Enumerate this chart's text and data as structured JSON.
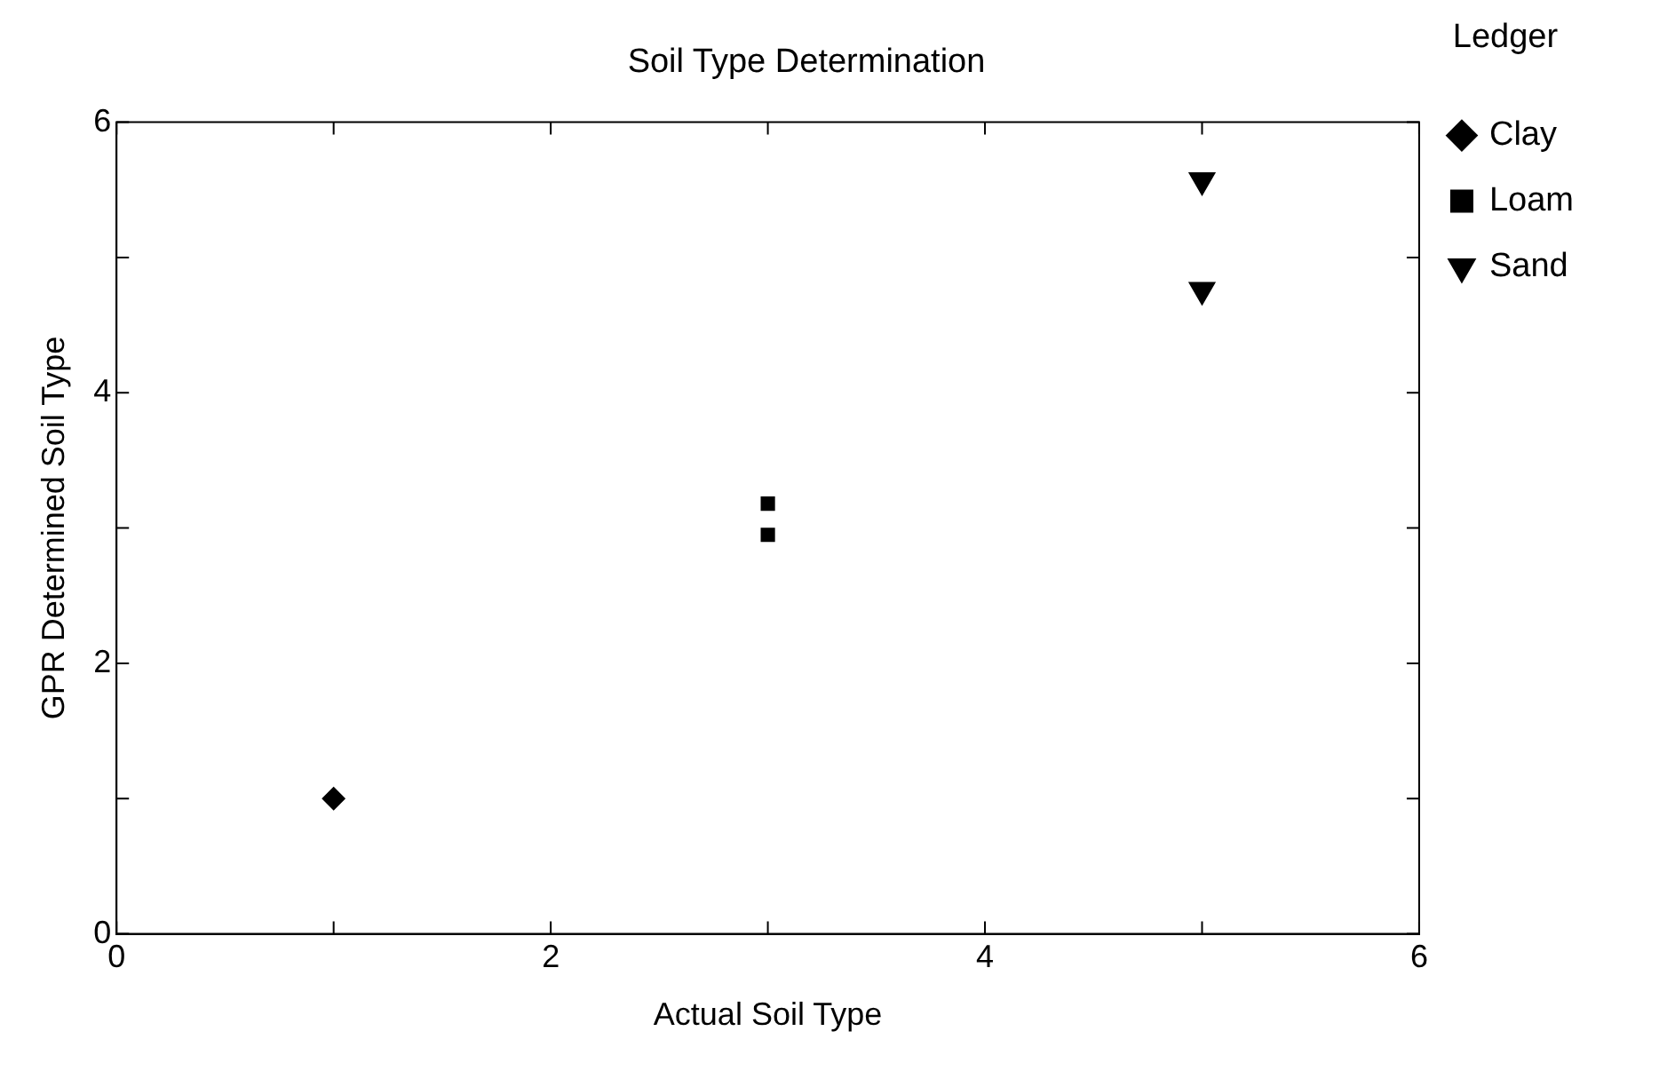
{
  "chart_data": {
    "type": "scatter",
    "title": "Soil Type Determination",
    "xlabel": "Actual Soil Type",
    "ylabel": "GPR Determined Soil Type",
    "legend_title": "Ledger",
    "legend": "top right",
    "grid": false,
    "xlim": [
      0,
      6
    ],
    "ylim": [
      0,
      6
    ],
    "xticks": [
      0,
      {
        "value": 1,
        "label": null
      },
      2,
      {
        "value": 3,
        "label": null
      },
      4,
      {
        "value": 5,
        "label": null
      },
      6
    ],
    "yticks": [
      0,
      {
        "value": 1,
        "label": null
      },
      2,
      {
        "value": 3,
        "label": null
      },
      4,
      {
        "value": 5,
        "label": null
      },
      6
    ],
    "series": [
      {
        "name": "Clay",
        "color": "#000000",
        "marker": "diamond",
        "x": [
          1
        ],
        "values": [
          1.0
        ]
      },
      {
        "name": "Loam",
        "color": "#000000",
        "marker": "square",
        "x": [
          3,
          3
        ],
        "values": [
          3.18,
          2.95
        ]
      },
      {
        "name": "Sand",
        "color": "#000000",
        "marker": "triangle_down",
        "x": [
          5,
          5
        ],
        "values": [
          5.57,
          4.76
        ]
      }
    ]
  }
}
